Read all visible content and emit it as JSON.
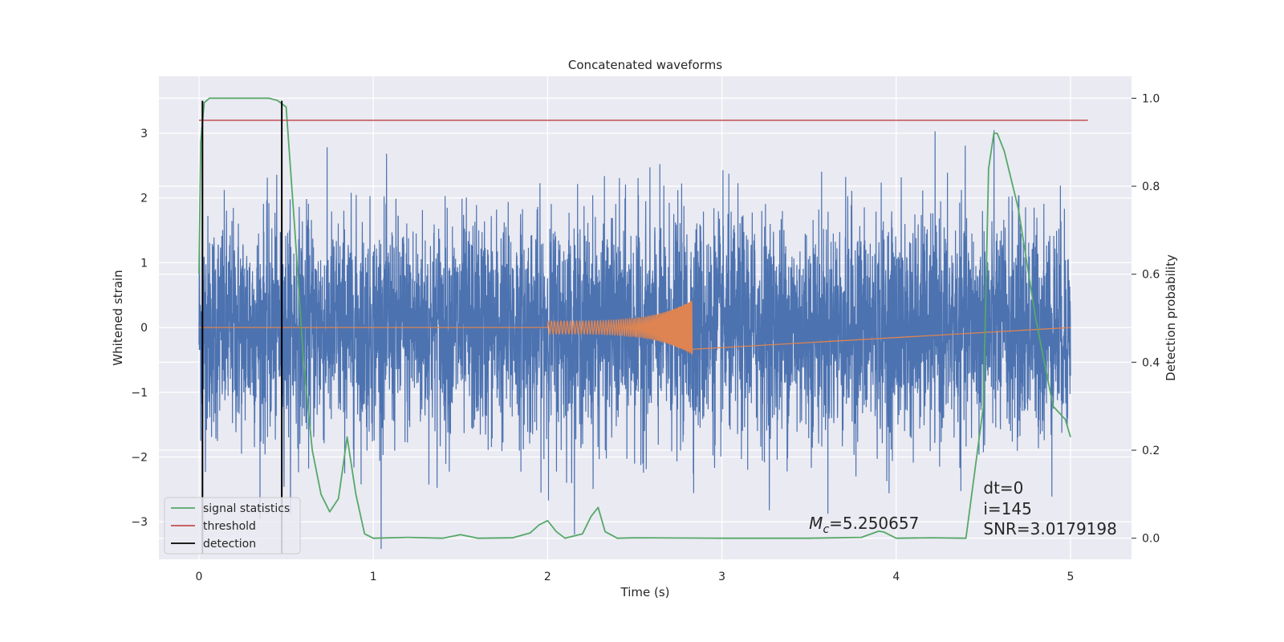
{
  "chart_data": {
    "type": "line",
    "title": "Concatenated waveforms",
    "xlabel": "Time (s)",
    "ylabel": "Whitened strain",
    "ylabel_right": "Detection probability",
    "xlim": [
      -0.23,
      5.35
    ],
    "ylim": [
      -3.58,
      3.88
    ],
    "ylim_right": [
      -0.048,
      1.05
    ],
    "xticks": [
      0,
      1,
      2,
      3,
      4,
      5
    ],
    "yticks": [
      -3,
      -2,
      -1,
      0,
      1,
      2,
      3
    ],
    "yticks_labels": [
      "−3",
      "−2",
      "−1",
      "0",
      "1",
      "2",
      "3"
    ],
    "yticks_right": [
      0.0,
      0.2,
      0.4,
      0.6,
      0.8,
      1.0
    ],
    "yticks_right_labels": [
      "0.0",
      "0.2",
      "0.4",
      "0.6",
      "0.8",
      "1.0"
    ],
    "grid": true,
    "background": "#eaeaf2",
    "legend_position": "lower-left",
    "series": [
      {
        "key": "whitened_strain",
        "axis": "left",
        "color": "#4c72b0",
        "style": "dense noise",
        "x_range": [
          0,
          5
        ],
        "approx_amplitude_std": 0.85,
        "approx_peak_max": 3.55,
        "approx_peak_min": -3.55
      },
      {
        "key": "injected_waveform",
        "axis": "left",
        "color": "#dd8452",
        "x_range": [
          0,
          5
        ],
        "chirp_start": 2.0,
        "chirp_end": 2.83,
        "approx_peak_amplitude": 0.42
      },
      {
        "name": "signal statistics",
        "axis": "right",
        "color": "#55a868",
        "x": [
          0.0,
          0.01,
          0.03,
          0.06,
          0.1,
          0.2,
          0.3,
          0.4,
          0.45,
          0.5,
          0.55,
          0.6,
          0.65,
          0.7,
          0.75,
          0.8,
          0.85,
          0.9,
          0.95,
          1.0,
          1.2,
          1.4,
          1.5,
          1.6,
          1.8,
          1.9,
          1.95,
          2.0,
          2.05,
          2.1,
          2.2,
          2.25,
          2.29,
          2.33,
          2.4,
          2.5,
          3.0,
          3.5,
          3.8,
          3.9,
          3.93,
          4.0,
          4.2,
          4.4,
          4.5,
          4.53,
          4.56,
          4.58,
          4.62,
          4.7,
          4.8,
          4.9,
          4.97,
          5.0
        ],
        "values": [
          0.6,
          0.9,
          0.99,
          1.0,
          1.0,
          1.0,
          1.0,
          1.0,
          0.995,
          0.98,
          0.7,
          0.4,
          0.2,
          0.1,
          0.06,
          0.09,
          0.23,
          0.1,
          0.01,
          0.0,
          0.002,
          0.0,
          0.008,
          0.0,
          0.001,
          0.012,
          0.03,
          0.04,
          0.015,
          0.0,
          0.01,
          0.05,
          0.07,
          0.015,
          0.0,
          0.001,
          0.0,
          0.0,
          0.002,
          0.016,
          0.014,
          0.0,
          0.001,
          0.0,
          0.3,
          0.84,
          0.92,
          0.92,
          0.88,
          0.75,
          0.5,
          0.3,
          0.27,
          0.23
        ]
      },
      {
        "name": "threshold",
        "axis": "right",
        "color": "#c44e52",
        "x_range": [
          0,
          5.1
        ],
        "value": 0.95
      },
      {
        "name": "detection",
        "axis": "left",
        "color": "#000000",
        "x": [
          0.02,
          0.475
        ],
        "y_range": [
          -3.5,
          3.5
        ]
      }
    ],
    "legend": [
      {
        "label": "signal statistics",
        "color": "#55a868"
      },
      {
        "label": "threshold",
        "color": "#c44e52"
      },
      {
        "label": "detection",
        "color": "#000000"
      }
    ],
    "annotations": {
      "mc_symbol": "M",
      "mc_sub": "c",
      "mc_value": "=5.250657",
      "dt": "dt=0",
      "i": "i=145",
      "snr": "SNR=3.0179198"
    }
  }
}
